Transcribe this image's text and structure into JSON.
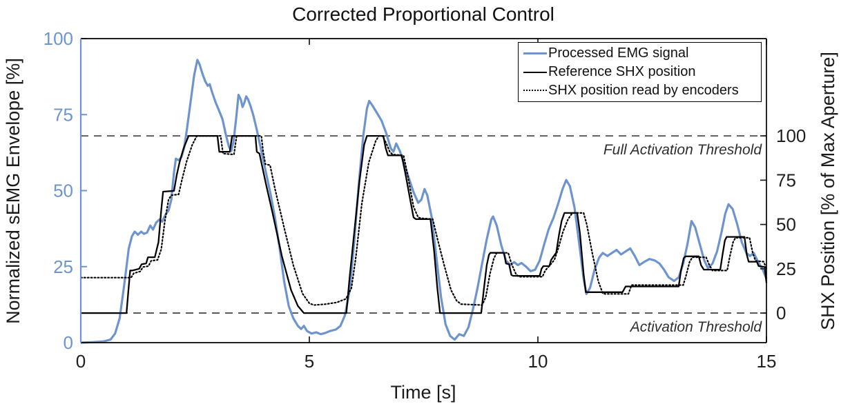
{
  "chart_data": {
    "type": "line",
    "title": "Corrected Proportional Control",
    "xlabel": "Time [s]",
    "ylabel_left": "Normalized sEMG Envelope [%]",
    "ylabel_right": "SHX Position [% of Max Aperture]",
    "xlim": [
      0,
      15
    ],
    "ylim_left": [
      0,
      100
    ],
    "ylim_right": [
      -16.7,
      154.9
    ],
    "x_ticks": [
      0,
      5,
      10,
      15
    ],
    "y_ticks_left": [
      0,
      25,
      50,
      75,
      100
    ],
    "y_ticks_right": [
      0,
      25,
      50,
      75,
      100
    ],
    "grid": false,
    "legend_position": "top-right-inside",
    "axis_colors": {
      "left": "#6e94d0",
      "right": "#1a1a1a",
      "x": "#1a1a1a"
    },
    "threshold_lines": [
      {
        "text": "Full Activation Threshold",
        "y_right": 100,
        "color": "#4d4d4d",
        "style": "dashed"
      },
      {
        "text": "Activation Threshold",
        "y_right": 0,
        "color": "#4d4d4d",
        "style": "dashed"
      }
    ],
    "series": [
      {
        "name": "Processed EMG signal",
        "axis": "left",
        "color": "#6e94d0",
        "style": "solid",
        "width": 3.2,
        "x": [
          0,
          0.3,
          0.5,
          0.65,
          0.75,
          0.85,
          0.95,
          1.05,
          1.12,
          1.18,
          1.25,
          1.32,
          1.38,
          1.45,
          1.52,
          1.58,
          1.65,
          1.72,
          1.78,
          1.85,
          1.92,
          1.98,
          2.04,
          2.08,
          2.14,
          2.2,
          2.26,
          2.32,
          2.4,
          2.48,
          2.55,
          2.6,
          2.66,
          2.72,
          2.78,
          2.82,
          2.88,
          2.95,
          3.02,
          3.1,
          3.18,
          3.24,
          3.29,
          3.34,
          3.4,
          3.45,
          3.5,
          3.54,
          3.58,
          3.62,
          3.66,
          3.72,
          3.78,
          3.85,
          3.95,
          4.05,
          4.15,
          4.25,
          4.35,
          4.45,
          4.55,
          4.65,
          4.75,
          4.82,
          4.88,
          4.95,
          5.05,
          5.15,
          5.25,
          5.35,
          5.45,
          5.58,
          5.68,
          5.78,
          5.88,
          5.98,
          6.08,
          6.18,
          6.26,
          6.31,
          6.38,
          6.48,
          6.58,
          6.68,
          6.78,
          6.84,
          6.9,
          6.98,
          7.08,
          7.18,
          7.28,
          7.38,
          7.45,
          7.52,
          7.58,
          7.68,
          7.78,
          7.88,
          7.98,
          8.08,
          8.18,
          8.28,
          8.38,
          8.48,
          8.58,
          8.68,
          8.78,
          8.88,
          8.98,
          9.02,
          9.1,
          9.2,
          9.3,
          9.4,
          9.48,
          9.56,
          9.64,
          9.74,
          9.84,
          9.94,
          10.04,
          10.14,
          10.24,
          10.34,
          10.44,
          10.54,
          10.62,
          10.7,
          10.8,
          10.9,
          11.0,
          11.06,
          11.14,
          11.24,
          11.34,
          11.42,
          11.52,
          11.62,
          11.72,
          11.82,
          11.92,
          12.02,
          12.12,
          12.22,
          12.32,
          12.44,
          12.56,
          12.66,
          12.76,
          12.86,
          12.98,
          13.08,
          13.18,
          13.28,
          13.36,
          13.44,
          13.54,
          13.64,
          13.72,
          13.82,
          13.92,
          14.02,
          14.1,
          14.17,
          14.26,
          14.36,
          14.46,
          14.56,
          14.64,
          14.72,
          14.82,
          14.92,
          15.0
        ],
        "y": [
          0,
          0.2,
          0.4,
          1,
          3,
          8,
          19,
          31,
          35,
          36.5,
          35.5,
          36.5,
          35.8,
          36.2,
          38.5,
          37.2,
          39.5,
          40.5,
          39.8,
          42,
          43.5,
          47,
          56,
          60.5,
          60,
          61,
          64,
          70,
          79,
          88,
          93,
          91.5,
          88.5,
          86,
          84.5,
          85,
          82,
          79,
          76.5,
          73.5,
          68,
          64.5,
          63,
          66,
          74,
          81.5,
          80,
          77.5,
          79,
          81,
          80,
          77.5,
          74.5,
          70,
          63,
          56,
          49,
          41,
          31,
          20,
          12,
          8,
          5.5,
          4.5,
          5.5,
          3.8,
          3,
          3.4,
          2.8,
          3.2,
          3.8,
          4.3,
          5.5,
          9,
          17,
          33,
          52,
          68,
          77,
          79.5,
          78,
          75.5,
          73,
          69,
          64,
          62.8,
          65.5,
          63,
          58.5,
          54,
          49.5,
          46,
          47,
          50.5,
          48.5,
          41,
          28,
          15,
          6,
          2.2,
          1,
          2.8,
          2.2,
          5,
          11,
          18,
          26,
          34,
          40.5,
          41.5,
          38.5,
          32,
          27,
          25.5,
          26.5,
          25.5,
          26.2,
          25,
          23.5,
          24,
          27,
          32.5,
          37.5,
          41,
          45.5,
          50.5,
          53.5,
          51.5,
          44.5,
          33,
          21,
          16,
          18,
          24,
          28,
          29.5,
          28.5,
          29.5,
          30.5,
          29,
          30,
          31,
          28.5,
          25.5,
          26.5,
          27.5,
          27,
          26,
          24,
          21.5,
          20.3,
          21.5,
          26,
          33,
          40,
          38,
          32.5,
          27,
          24.5,
          26,
          30,
          36.5,
          42.5,
          45.5,
          44,
          39,
          33,
          29.5,
          28.5,
          29.5,
          26.5,
          24,
          21
        ]
      },
      {
        "name": "Reference SHX position",
        "axis": "right",
        "color": "#000000",
        "style": "solid",
        "width": 2.3,
        "x": [
          0,
          1.0,
          1.04,
          1.08,
          1.13,
          1.28,
          1.33,
          1.43,
          1.47,
          1.62,
          1.7,
          1.76,
          1.8,
          2.04,
          2.1,
          2.16,
          2.25,
          2.36,
          2.99,
          3.03,
          3.26,
          3.31,
          3.82,
          3.85,
          3.91,
          3.95,
          4.05,
          4.2,
          4.4,
          4.6,
          4.75,
          4.88,
          5.81,
          5.88,
          6.0,
          6.1,
          6.2,
          6.26,
          6.62,
          6.67,
          6.72,
          7.02,
          7.1,
          7.2,
          7.28,
          7.33,
          7.65,
          7.73,
          7.8,
          7.86,
          8.76,
          8.82,
          8.88,
          8.93,
          8.96,
          9.26,
          9.3,
          9.37,
          9.42,
          9.46,
          10.04,
          10.08,
          10.12,
          10.25,
          10.29,
          10.33,
          10.4,
          10.46,
          10.52,
          10.58,
          10.86,
          10.92,
          11.0,
          11.05,
          11.85,
          11.92,
          13.08,
          13.13,
          13.19,
          13.23,
          13.52,
          13.57,
          13.63,
          13.99,
          14.04,
          14.09,
          14.13,
          14.52,
          14.57,
          14.61,
          14.79,
          14.83,
          14.96,
          15.0
        ],
        "y": [
          0,
          0,
          12,
          24,
          24,
          25,
          27.5,
          28,
          31.5,
          31.5,
          40,
          58,
          68.5,
          69,
          78,
          85,
          93,
          100,
          100,
          91,
          91,
          100,
          100,
          91,
          90,
          85,
          73,
          56,
          32,
          13,
          4,
          0,
          0,
          20,
          50,
          75,
          95,
          100,
          100,
          93,
          89,
          89,
          79,
          65,
          54,
          53,
          53,
          35,
          14,
          0,
          0,
          14,
          27,
          33,
          34,
          34,
          28,
          27.5,
          21.5,
          21,
          21,
          25,
          26.5,
          26.5,
          30,
          31.5,
          34,
          44,
          52,
          56.5,
          56.5,
          45,
          22,
          11.8,
          11.8,
          15,
          15,
          24,
          31,
          32,
          32,
          27,
          24.5,
          24.5,
          33,
          41,
          43,
          43,
          33,
          29,
          29,
          26.5,
          26,
          17
        ]
      },
      {
        "name": "SHX position read by encoders",
        "axis": "right",
        "color": "#000000",
        "style": "dotted",
        "width": 2.2,
        "x": [
          0,
          1.1,
          1.16,
          1.3,
          1.36,
          1.48,
          1.54,
          1.68,
          1.76,
          1.84,
          1.92,
          1.98,
          2.14,
          2.22,
          2.32,
          2.44,
          2.54,
          3.06,
          3.11,
          3.35,
          3.41,
          3.95,
          3.99,
          4.04,
          4.14,
          4.25,
          4.45,
          4.65,
          4.85,
          5.0,
          5.1,
          5.35,
          5.6,
          5.8,
          5.92,
          6.02,
          6.15,
          6.3,
          6.45,
          6.52,
          6.6,
          6.68,
          6.76,
          6.82,
          7.06,
          7.15,
          7.28,
          7.38,
          7.44,
          7.7,
          7.8,
          7.95,
          8.1,
          8.22,
          8.32,
          8.78,
          8.86,
          8.95,
          9.04,
          9.1,
          9.35,
          9.42,
          9.52,
          9.58,
          10.1,
          10.16,
          10.28,
          10.36,
          10.44,
          10.55,
          10.66,
          10.74,
          10.79,
          11.0,
          11.07,
          11.18,
          11.32,
          11.42,
          11.47,
          11.98,
          12.05,
          13.18,
          13.24,
          13.32,
          13.38,
          13.68,
          13.75,
          13.82,
          14.14,
          14.2,
          14.27,
          14.32,
          14.63,
          14.7,
          14.76,
          14.94,
          15.0
        ],
        "y": [
          20,
          20,
          22.5,
          23.5,
          26,
          26.5,
          29.5,
          30,
          36,
          52,
          64,
          66.5,
          67,
          76,
          86,
          95,
          100,
          100,
          90,
          89.5,
          100,
          100,
          91,
          84,
          83.5,
          70,
          48,
          27,
          11,
          5.5,
          4.5,
          5,
          6,
          8,
          14,
          32,
          62,
          85,
          97,
          100,
          100,
          96,
          91,
          89.5,
          89,
          78,
          60,
          54,
          53.5,
          53,
          42,
          27,
          13,
          7,
          5,
          4.5,
          9,
          22,
          31,
          34,
          34,
          28,
          22,
          20.5,
          20.5,
          24,
          27.5,
          30,
          36,
          46,
          53,
          56,
          56.5,
          56.5,
          50,
          35,
          18,
          11,
          10.8,
          10.8,
          15.8,
          15.8,
          21,
          29,
          31.5,
          31.5,
          27,
          24,
          24,
          32,
          40,
          42.5,
          42.5,
          34,
          29.5,
          29,
          25
        ]
      }
    ]
  }
}
